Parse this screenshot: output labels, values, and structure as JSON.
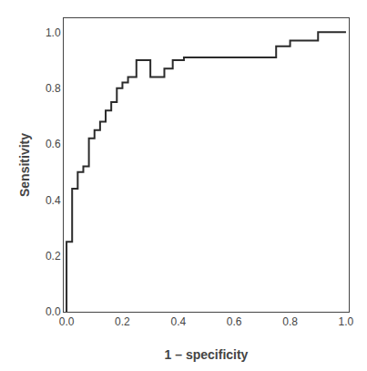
{
  "chart_data": {
    "type": "line",
    "x": [
      0.0,
      0.0,
      0.02,
      0.02,
      0.04,
      0.04,
      0.06,
      0.06,
      0.08,
      0.08,
      0.1,
      0.1,
      0.12,
      0.12,
      0.14,
      0.14,
      0.16,
      0.16,
      0.18,
      0.18,
      0.2,
      0.2,
      0.22,
      0.22,
      0.25,
      0.25,
      0.3,
      0.3,
      0.35,
      0.35,
      0.38,
      0.38,
      0.42,
      0.42,
      0.45,
      0.45,
      0.5,
      0.5,
      0.75,
      0.75,
      0.8,
      0.8,
      0.9,
      0.9,
      1.0
    ],
    "values": [
      0.0,
      0.25,
      0.25,
      0.44,
      0.44,
      0.5,
      0.5,
      0.52,
      0.52,
      0.62,
      0.62,
      0.65,
      0.65,
      0.68,
      0.68,
      0.72,
      0.72,
      0.75,
      0.75,
      0.8,
      0.8,
      0.82,
      0.82,
      0.84,
      0.84,
      0.9,
      0.9,
      0.84,
      0.84,
      0.87,
      0.87,
      0.9,
      0.9,
      0.91,
      0.91,
      0.91,
      0.91,
      0.91,
      0.91,
      0.95,
      0.95,
      0.97,
      0.97,
      1.0,
      1.0
    ],
    "color": "#2b2b2b",
    "xlabel": "1 – specificity",
    "ylabel": "Sensitivity",
    "xlim": [
      -0.01,
      1.01
    ],
    "ylim": [
      0.0,
      1.05
    ],
    "xticks": [
      {
        "value": 0,
        "label": "0.0"
      },
      0.2,
      0.4,
      0.6,
      0.8,
      {
        "value": 1,
        "label": "1.0"
      }
    ],
    "yticks": [
      {
        "value": 0,
        "label": "0.0"
      },
      0.2,
      0.4,
      0.6,
      0.8,
      {
        "value": 1,
        "label": "1.0"
      }
    ],
    "grid": false
  }
}
